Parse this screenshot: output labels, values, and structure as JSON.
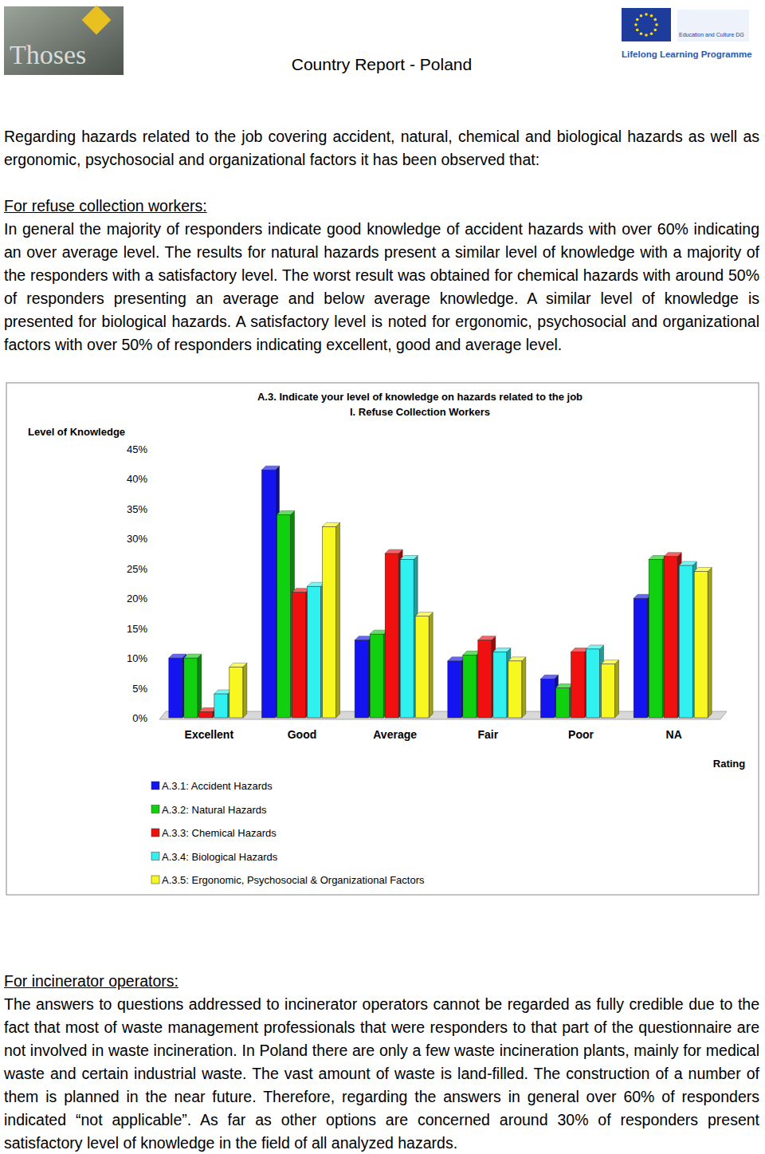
{
  "header": {
    "logo_text": "Thoses",
    "title": "Country Report - Poland",
    "programme": "Lifelong Learning Programme",
    "eu_text": "Education and Culture DG"
  },
  "intro": "Regarding hazards related to the job covering accident, natural, chemical and biological hazards as well as ergonomic, psychosocial and organizational factors it has been observed that:",
  "sections": [
    {
      "heading": "For refuse collection workers:",
      "text": "In general the majority of responders indicate good knowledge of accident hazards with over 60% indicating an over average level. The results for natural hazards present a similar level of knowledge with a majority of the responders with a satisfactory level. The worst result was obtained for chemical hazards with around 50% of responders presenting an average and below average knowledge. A similar level of knowledge is presented for biological hazards. A satisfactory level is noted for ergonomic, psychosocial and organizational factors with over 50% of responders indicating excellent, good and average level."
    },
    {
      "heading": "For incinerator operators:",
      "text": "The answers to questions addressed to incinerator operators cannot be regarded as fully credible due to the fact that most of waste management professionals that were responders to that part of the questionnaire are not involved in waste incineration. In Poland there are only a few waste incineration plants, mainly for medical waste and certain industrial waste. The vast amount of waste is land-filled. The construction of a number of them is planned in the near future. Therefore, regarding the answers in general over 60% of responders indicated “not applicable”. As far as other options are concerned around 30% of responders present satisfactory level of knowledge in the field of all analyzed hazards."
    }
  ],
  "chart_data": {
    "type": "bar",
    "title": "A.3. Indicate your level of knowledge on hazards related to the job",
    "subtitle": "I. Refuse Collection Workers",
    "y_label": "Level of Knowledge",
    "x_label": "Rating",
    "categories": [
      "Excellent",
      "Good",
      "Average",
      "Fair",
      "Poor",
      "NA"
    ],
    "series": [
      {
        "name": "A.3.1: Accident Hazards",
        "color": "#1414f0",
        "values": [
          10,
          41.5,
          13,
          9.5,
          6.5,
          20
        ]
      },
      {
        "name": "A.3.2: Natural Hazards",
        "color": "#10d010",
        "values": [
          10,
          34,
          14,
          10.5,
          5,
          26.5
        ]
      },
      {
        "name": "A.3.3: Chemical Hazards",
        "color": "#f01010",
        "values": [
          1,
          21,
          27.5,
          13,
          11,
          27
        ]
      },
      {
        "name": "A.3.4: Biological Hazards",
        "color": "#30f0f0",
        "values": [
          4,
          22,
          26.5,
          11,
          11.5,
          25.5
        ]
      },
      {
        "name": "A.3.5: Ergonomic, Psychosocial & Organizational Factors",
        "color": "#f8f820",
        "values": [
          8.5,
          32,
          17,
          9.5,
          9,
          24.5
        ]
      }
    ],
    "ylim": [
      0,
      45
    ],
    "yticks": [
      {
        "value": 0,
        "label": "0%"
      },
      {
        "value": 5,
        "label": "5%"
      },
      {
        "value": 10,
        "label": "10%"
      },
      {
        "value": 15,
        "label": "15%"
      },
      {
        "value": 20,
        "label": "20%"
      },
      {
        "value": 25,
        "label": "25%"
      },
      {
        "value": 30,
        "label": "30%"
      },
      {
        "value": 35,
        "label": "35%"
      },
      {
        "value": 40,
        "label": "40%"
      },
      {
        "value": 45,
        "label": "45%"
      }
    ],
    "grid": false,
    "legend": "bottom"
  }
}
